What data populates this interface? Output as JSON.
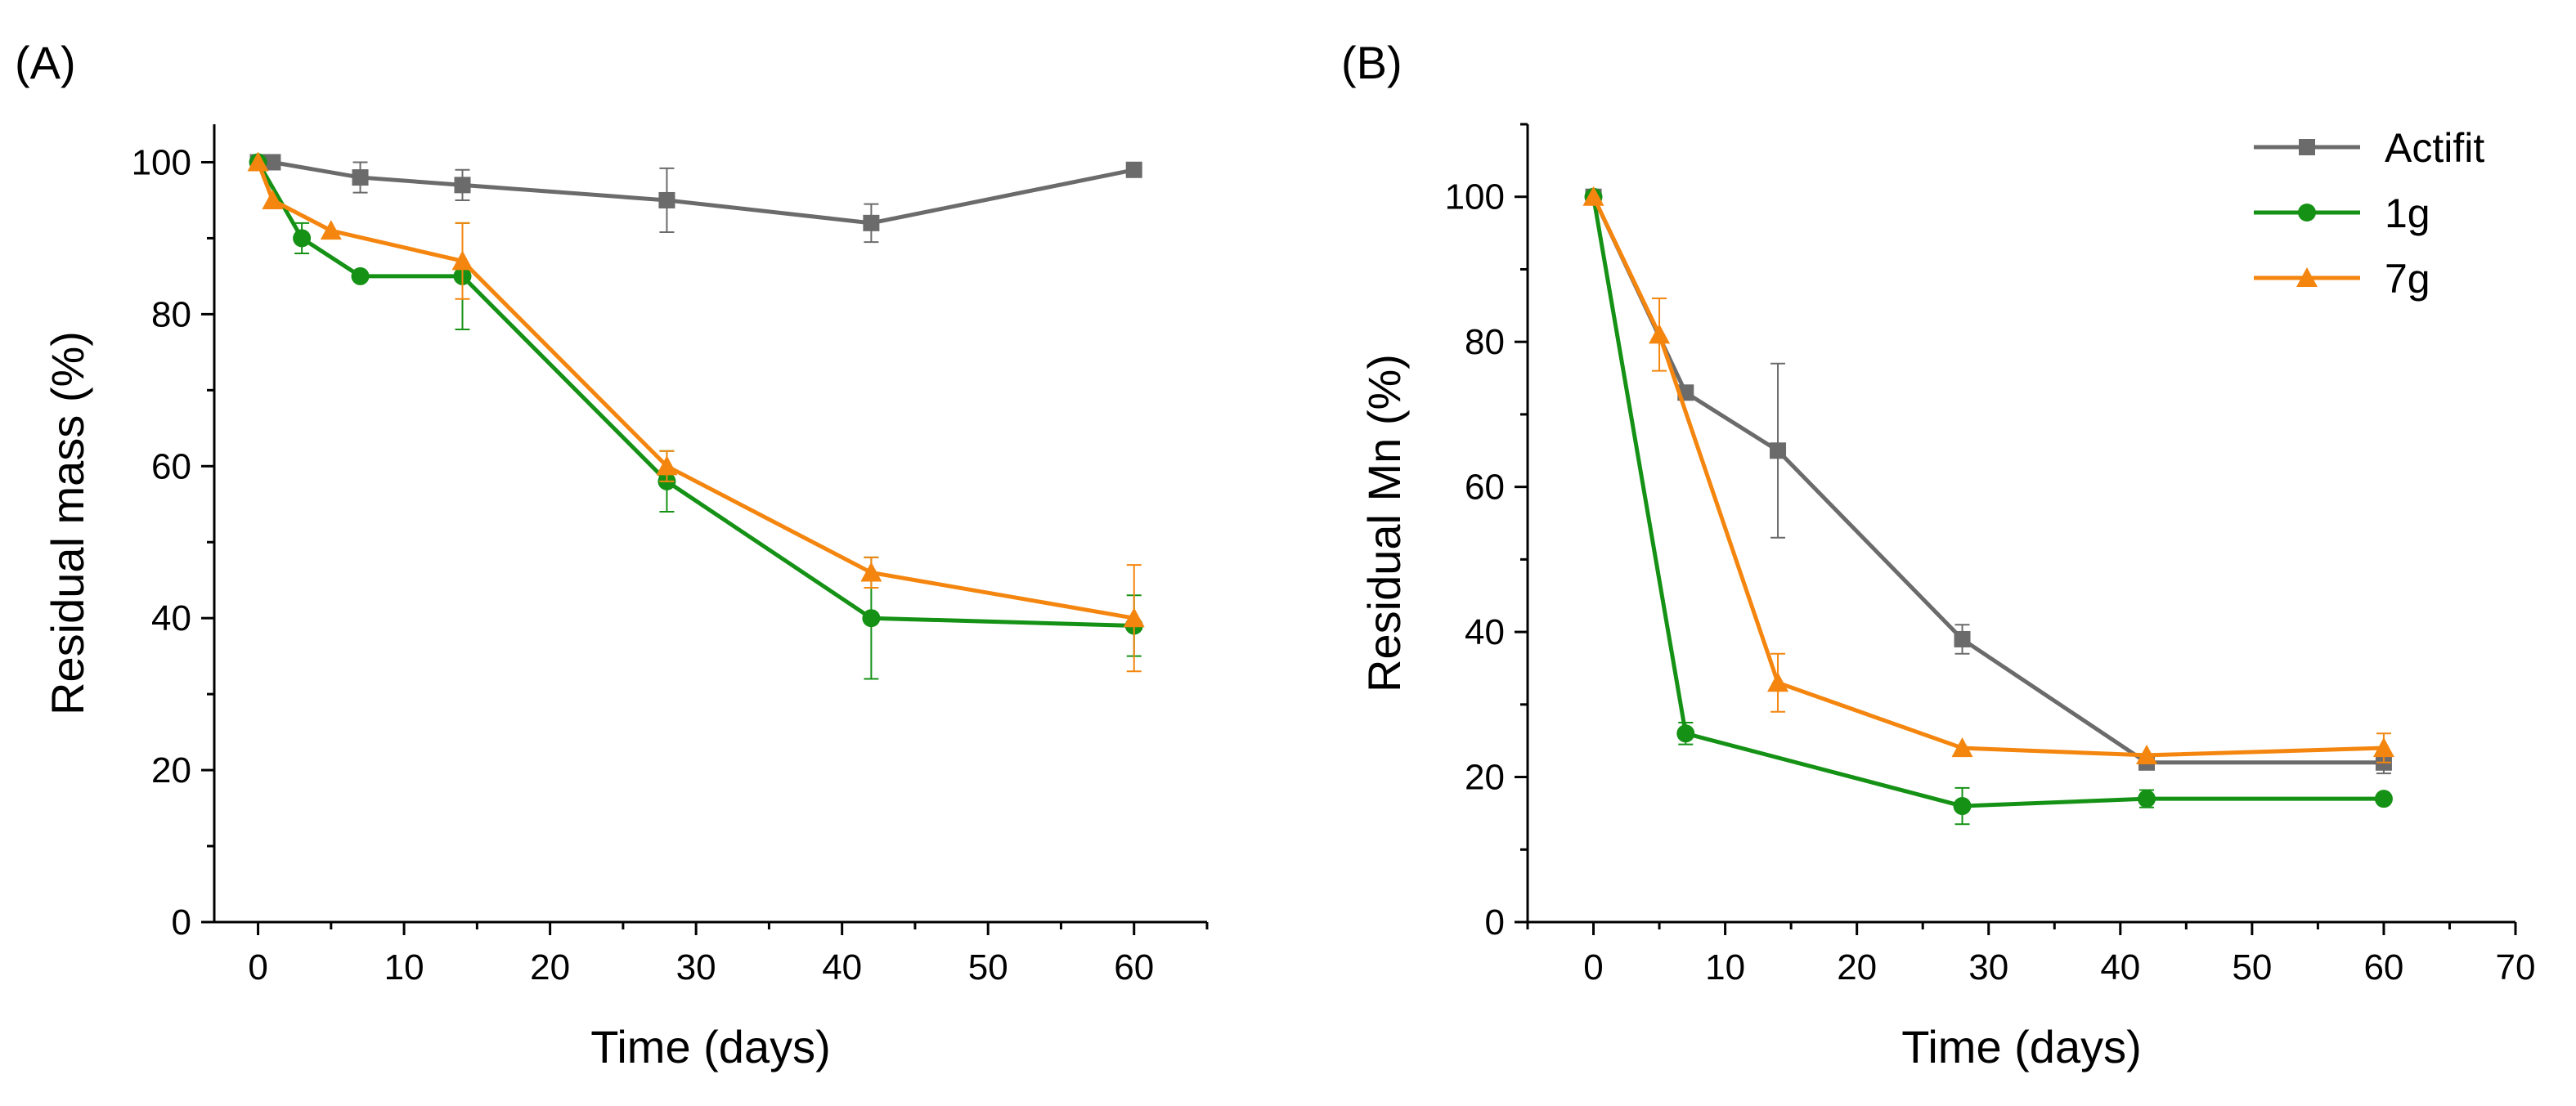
{
  "figure": {
    "colors": {
      "Actifit": "#6b6b6b",
      "1g": "#159215",
      "7g": "#f4860f",
      "axis": "#000000"
    }
  },
  "chart_data": [
    {
      "id": "A",
      "panel_label": "(A)",
      "type": "line",
      "title": "",
      "xlabel": "Time (days)",
      "ylabel": "Residual mass (%)",
      "xlim": [
        -3,
        65
      ],
      "ylim": [
        0,
        105
      ],
      "xticks": [
        0,
        10,
        20,
        30,
        40,
        50,
        60
      ],
      "yticks": [
        0,
        20,
        40,
        60,
        80,
        100
      ],
      "show_legend": false,
      "series": [
        {
          "name": "Actifit",
          "marker": "square",
          "x": [
            0,
            1,
            7,
            14,
            28,
            42,
            60
          ],
          "y": [
            100,
            100,
            98,
            97,
            95,
            92,
            99
          ],
          "err": [
            0,
            0,
            2,
            2,
            4.2,
            2.5,
            0
          ]
        },
        {
          "name": "1g",
          "marker": "circle",
          "x": [
            0,
            3,
            7,
            14,
            28,
            42,
            60
          ],
          "y": [
            100,
            90,
            85,
            85,
            58,
            40,
            39
          ],
          "err": [
            0,
            2,
            0,
            7,
            4,
            8,
            4
          ]
        },
        {
          "name": "7g",
          "marker": "triangle",
          "x": [
            0,
            1,
            5,
            14,
            28,
            42,
            60
          ],
          "y": [
            100,
            95,
            91,
            87,
            60,
            46,
            40
          ],
          "err": [
            0,
            0,
            0,
            5,
            2,
            2,
            7
          ]
        }
      ]
    },
    {
      "id": "B",
      "panel_label": "(B)",
      "type": "line",
      "title": "",
      "xlabel": "Time (days)",
      "ylabel": "Residual Mn (%)",
      "xlim": [
        -5,
        70
      ],
      "ylim": [
        0,
        110
      ],
      "xticks": [
        0,
        10,
        20,
        30,
        40,
        50,
        60,
        70
      ],
      "yticks": [
        0,
        20,
        40,
        60,
        80,
        100
      ],
      "show_legend": true,
      "legend_position": "top-right",
      "series": [
        {
          "name": "Actifit",
          "marker": "square",
          "x": [
            0,
            7,
            14,
            28,
            42,
            60
          ],
          "y": [
            100,
            73,
            65,
            39,
            22,
            22
          ],
          "err": [
            0,
            0,
            12,
            2,
            0,
            1.5
          ]
        },
        {
          "name": "1g",
          "marker": "circle",
          "x": [
            0,
            7,
            28,
            42,
            60
          ],
          "y": [
            100,
            26,
            16,
            17,
            17
          ],
          "err": [
            0,
            1.5,
            2.5,
            1.2,
            0
          ]
        },
        {
          "name": "7g",
          "marker": "triangle",
          "x": [
            0,
            5,
            14,
            28,
            42,
            60
          ],
          "y": [
            100,
            81,
            33,
            24,
            23,
            24
          ],
          "err": [
            0,
            5,
            4,
            0,
            0,
            2
          ]
        }
      ]
    }
  ]
}
